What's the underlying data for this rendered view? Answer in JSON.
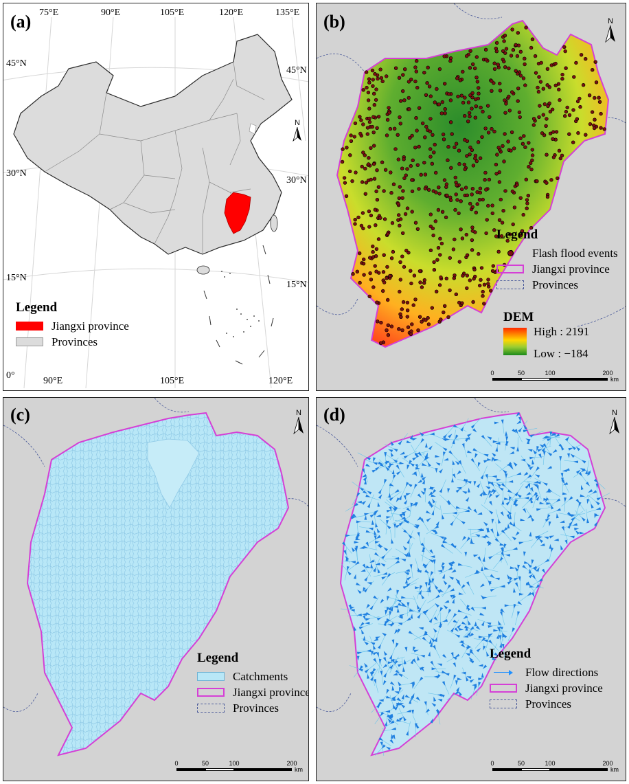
{
  "panel_a": {
    "label": "(a)",
    "top_ticks": [
      "75°E",
      "90°E",
      "105°E",
      "120°E",
      "135°E"
    ],
    "bottom_ticks": [
      "90°E",
      "105°E",
      "120°E"
    ],
    "left_ticks": [
      "45°N",
      "30°N",
      "15°N",
      "0°"
    ],
    "right_ticks": [
      "45°N",
      "30°N",
      "15°N"
    ],
    "north_symbol": "N",
    "legend": {
      "title": "Legend",
      "items": [
        "Jiangxi province",
        "Provinces"
      ]
    }
  },
  "panel_b": {
    "label": "(b)",
    "north_symbol": "N",
    "legend": {
      "title": "Legend",
      "items": [
        "Flash flood events",
        "Jiangxi province",
        "Provinces"
      ]
    },
    "dem": {
      "title": "DEM",
      "high": "High : 2191",
      "low": "Low : −184"
    },
    "scale": {
      "ticks": [
        "0",
        "50",
        "100",
        "200"
      ],
      "unit": "km"
    }
  },
  "panel_c": {
    "label": "(c)",
    "north_symbol": "N",
    "legend": {
      "title": "Legend",
      "items": [
        "Catchments",
        "Jiangxi province",
        "Provinces"
      ]
    },
    "scale": {
      "ticks": [
        "0",
        "50",
        "100",
        "200"
      ],
      "unit": "km"
    }
  },
  "panel_d": {
    "label": "(d)",
    "north_symbol": "N",
    "legend": {
      "title": "Legend",
      "items": [
        "Flow directions",
        "Jiangxi province",
        "Provinces"
      ]
    },
    "scale": {
      "ticks": [
        "0",
        "50",
        "100",
        "200"
      ],
      "unit": "km"
    }
  },
  "colors": {
    "jiangxi_fill": "#ff0000",
    "province_fill": "#dcdcdc",
    "boundary": "#d53fd6",
    "catchment_fill": "#b8e7f7",
    "flow_arrow": "#1e90ff",
    "flood_event": "#7a1010"
  }
}
